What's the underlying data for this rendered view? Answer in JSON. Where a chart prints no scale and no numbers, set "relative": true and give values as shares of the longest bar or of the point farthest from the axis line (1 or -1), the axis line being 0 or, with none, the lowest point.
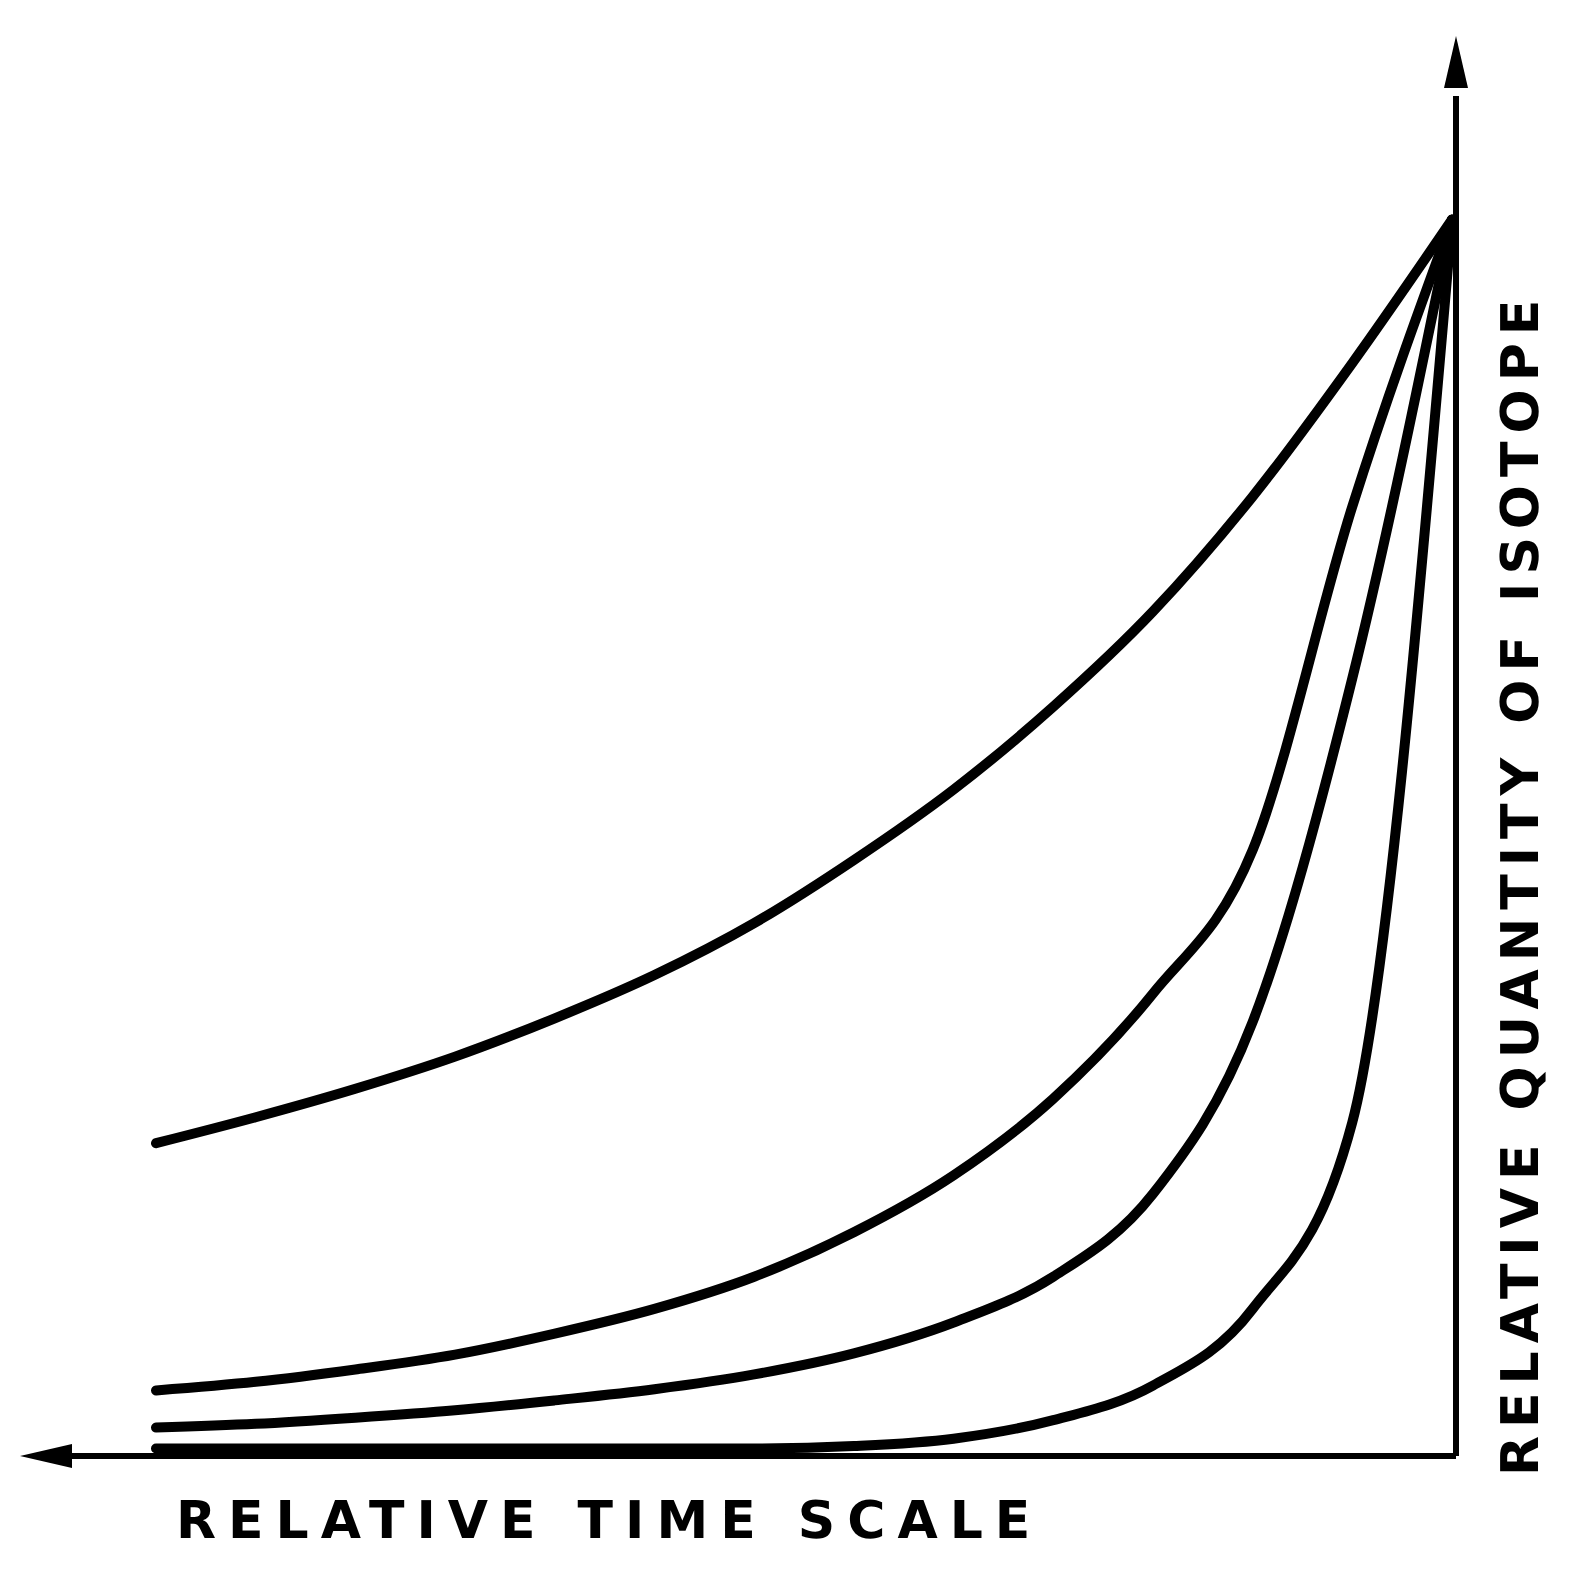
{
  "chart_data": {
    "type": "line",
    "relative": true,
    "xlabel": "RELATIVE TIME SCALE",
    "ylabel": "RELATIVE QUANTITY OF ISOTOPE",
    "categories": [
      null,
      null,
      null,
      null,
      null,
      null,
      null,
      null,
      null,
      null,
      null,
      null,
      null,
      null
    ],
    "grid": false,
    "legend": false,
    "marker": "none",
    "line_style": "solid",
    "series": [
      {
        "color": "#000000",
        "values": [
          0.253,
          0.274,
          0.297,
          0.323,
          0.354,
          0.389,
          0.431,
          0.482,
          0.539,
          0.606,
          0.683,
          0.776,
          0.884,
          1
        ]
      },
      {
        "color": "#000000",
        "values": [
          0.053,
          0.06,
          0.07,
          0.082,
          0.099,
          0.119,
          0.145,
          0.181,
          0.227,
          0.289,
          0.374,
          0.49,
          0.768,
          1
        ]
      },
      {
        "color": "#000000",
        "values": [
          0.023,
          0.026,
          0.031,
          0.037,
          0.045,
          0.054,
          0.066,
          0.083,
          0.108,
          0.145,
          0.212,
          0.351,
          0.629,
          1
        ]
      },
      {
        "color": "#000000",
        "values": [
          0.006,
          0.006,
          0.006,
          0.006,
          0.006,
          0.006,
          0.006,
          0.008,
          0.014,
          0.029,
          0.057,
          0.119,
          0.27,
          1
        ]
      }
    ]
  }
}
